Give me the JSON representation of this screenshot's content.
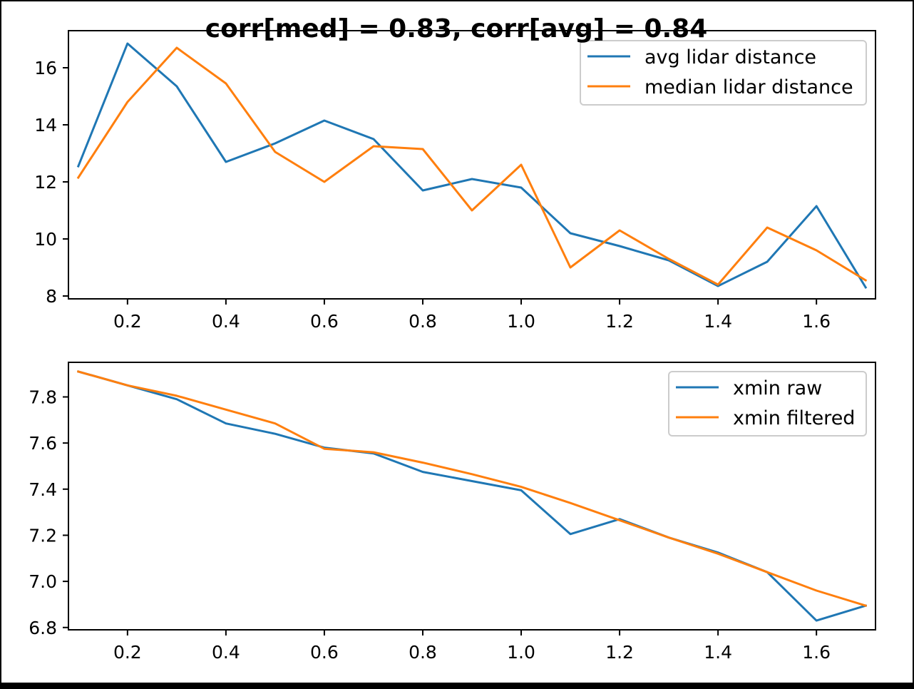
{
  "title": "corr[med] = 0.83, corr[avg] = 0.84",
  "chart_data": [
    {
      "type": "line",
      "title": "",
      "xlabel": "",
      "ylabel": "",
      "xlim": [
        0.08,
        1.72
      ],
      "ylim": [
        7.9,
        17.3
      ],
      "xticks": [
        0.2,
        0.4,
        0.6,
        0.8,
        1.0,
        1.2,
        1.4,
        1.6
      ],
      "xtick_labels": [
        "0.2",
        "0.4",
        "0.6",
        "0.8",
        "1.0",
        "1.2",
        "1.4",
        "1.6"
      ],
      "yticks": [
        8,
        10,
        12,
        14,
        16
      ],
      "ytick_labels": [
        "8",
        "10",
        "12",
        "14",
        "16"
      ],
      "grid": false,
      "legend_position": "upper right",
      "x": [
        0.1,
        0.2,
        0.3,
        0.4,
        0.5,
        0.6,
        0.7,
        0.8,
        0.9,
        1.0,
        1.1,
        1.2,
        1.3,
        1.4,
        1.5,
        1.6,
        1.7
      ],
      "series": [
        {
          "name": "avg lidar distance",
          "color": "#1f77b4",
          "values": [
            12.55,
            16.85,
            15.35,
            12.7,
            13.35,
            14.15,
            13.5,
            11.7,
            12.1,
            11.8,
            10.2,
            9.75,
            9.25,
            8.35,
            9.2,
            11.15,
            8.3
          ]
        },
        {
          "name": "median lidar distance",
          "color": "#ff7f0e",
          "values": [
            12.15,
            14.8,
            16.7,
            15.45,
            13.05,
            12.0,
            13.25,
            13.15,
            11.0,
            12.6,
            9.0,
            10.3,
            9.3,
            8.4,
            10.4,
            9.6,
            8.55
          ]
        }
      ]
    },
    {
      "type": "line",
      "title": "",
      "xlabel": "",
      "ylabel": "",
      "xlim": [
        0.08,
        1.72
      ],
      "ylim": [
        6.79,
        7.95
      ],
      "xticks": [
        0.2,
        0.4,
        0.6,
        0.8,
        1.0,
        1.2,
        1.4,
        1.6
      ],
      "xtick_labels": [
        "0.2",
        "0.4",
        "0.6",
        "0.8",
        "1.0",
        "1.2",
        "1.4",
        "1.6"
      ],
      "yticks": [
        6.8,
        7.0,
        7.2,
        7.4,
        7.6,
        7.8
      ],
      "ytick_labels": [
        "6.8",
        "7.0",
        "7.2",
        "7.4",
        "7.6",
        "7.8"
      ],
      "grid": false,
      "legend_position": "upper right",
      "x": [
        0.1,
        0.2,
        0.3,
        0.4,
        0.5,
        0.6,
        0.7,
        0.8,
        0.9,
        1.0,
        1.1,
        1.2,
        1.3,
        1.4,
        1.5,
        1.6,
        1.7
      ],
      "series": [
        {
          "name": "xmin raw",
          "color": "#1f77b4",
          "values": [
            7.91,
            7.85,
            7.79,
            7.685,
            7.64,
            7.58,
            7.555,
            7.475,
            7.435,
            7.395,
            7.205,
            7.27,
            7.19,
            7.125,
            7.04,
            6.83,
            6.895
          ]
        },
        {
          "name": "xmin filtered",
          "color": "#ff7f0e",
          "values": [
            7.91,
            7.85,
            7.805,
            7.745,
            7.685,
            7.575,
            7.56,
            7.515,
            7.465,
            7.41,
            7.34,
            7.265,
            7.19,
            7.12,
            7.04,
            6.96,
            6.895
          ]
        }
      ]
    }
  ]
}
